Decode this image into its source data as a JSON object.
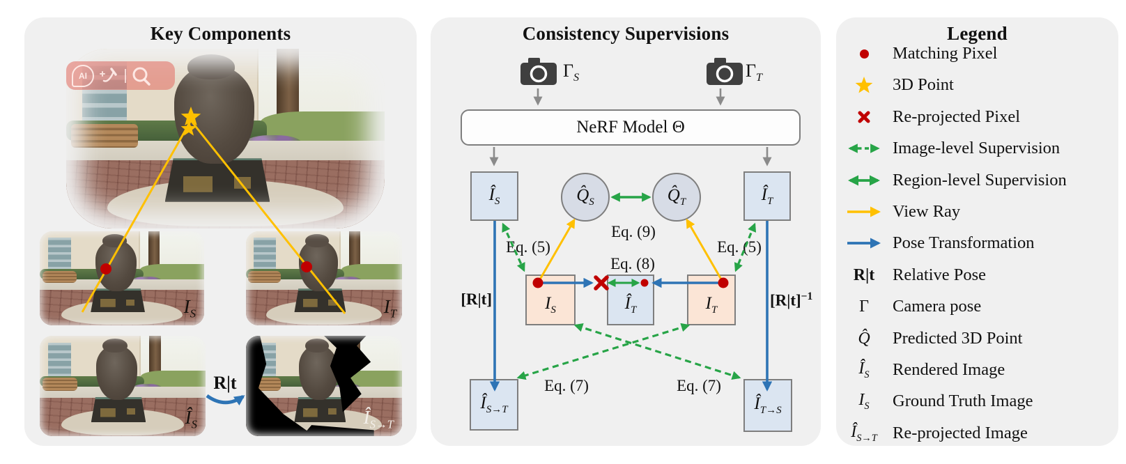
{
  "figure": {
    "left_panel": {
      "title": "Key Components",
      "watermark": {
        "ai_label": "AI"
      },
      "image_labels": {
        "source": {
          "base": "I",
          "sub": "S"
        },
        "target": {
          "base": "I",
          "sub": "T"
        },
        "rendered_source": {
          "base": "Î",
          "sub": "S"
        },
        "reprojected": {
          "base": "Î",
          "sub": "S→T"
        }
      },
      "relative_pose_label": "R|t"
    },
    "middle_panel": {
      "title": "Consistency Supervisions",
      "camera_source": {
        "base": "Γ",
        "sub": "S"
      },
      "camera_target": {
        "base": "Γ",
        "sub": "T"
      },
      "nerf_box_label": "NeRF Model Θ",
      "nodes": {
        "rendered_source": {
          "base": "Î",
          "sub": "S"
        },
        "rendered_target": {
          "base": "Î",
          "sub": "T"
        },
        "point_source": {
          "base": "Q̂",
          "sub": "S"
        },
        "point_target": {
          "base": "Q̂",
          "sub": "T"
        },
        "gt_source": {
          "base": "I",
          "sub": "S"
        },
        "rendered_target_center": {
          "base": "Î",
          "sub": "T"
        },
        "gt_target": {
          "base": "I",
          "sub": "T"
        },
        "reprojected_st": {
          "base": "Î",
          "sub": "S→T"
        },
        "reprojected_ts": {
          "base": "Î",
          "sub": "T→S"
        }
      },
      "equations": {
        "eq5_left": "Eq. (5)",
        "eq5_right": "Eq. (5)",
        "eq9": "Eq. (9)",
        "eq8": "Eq. (8)",
        "eq7_left": "Eq. (7)",
        "eq7_right": "Eq. (7)"
      },
      "pose_left": "[R|t]",
      "pose_right": {
        "base": "[R|t]",
        "sup": "−1"
      }
    },
    "legend": {
      "title": "Legend",
      "items": [
        {
          "icon": "matching-pixel-dot-icon",
          "label": "Matching Pixel"
        },
        {
          "icon": "3d-point-star-icon",
          "label": "3D Point"
        },
        {
          "icon": "reprojected-pixel-cross-icon",
          "label": "Re-projected Pixel"
        },
        {
          "icon": "image-level-supervision-arrow-icon",
          "label": "Image-level Supervision"
        },
        {
          "icon": "region-level-supervision-arrow-icon",
          "label": "Region-level Supervision"
        },
        {
          "icon": "view-ray-arrow-icon",
          "label": "View Ray"
        },
        {
          "icon": "pose-transformation-arrow-icon",
          "label": "Pose Transformation"
        },
        {
          "symbol": {
            "base": "R|t"
          },
          "label": "Relative Pose"
        },
        {
          "symbol": {
            "base": "Γ"
          },
          "label": "Camera pose"
        },
        {
          "symbol": {
            "base": "Q̂"
          },
          "label": "Predicted 3D Point"
        },
        {
          "symbol": {
            "base": "Î",
            "sub": "S"
          },
          "label": "Rendered Image"
        },
        {
          "symbol": {
            "base": "I",
            "sub": "S"
          },
          "label": "Ground Truth Image"
        },
        {
          "symbol": {
            "base": "Î",
            "sub": "S→T"
          },
          "label": "Re-projected Image"
        }
      ]
    },
    "colors": {
      "view_ray_yellow": "#FFC000",
      "supervision_green": "#27A447",
      "pose_blue": "#2E74B5",
      "pixel_red": "#C00000",
      "rendered_box_fill": "#DBE5F1",
      "gt_box_fill": "#FBE5D6",
      "point_circle_fill": "#D7DCE6",
      "panel_bg": "#F0F0F0"
    }
  }
}
